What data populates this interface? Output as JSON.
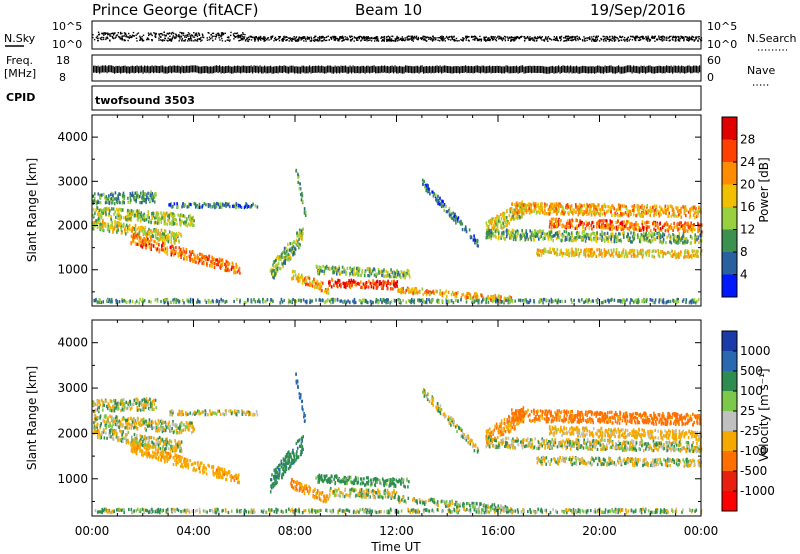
{
  "header": {
    "station": "Prince George (fitACF)",
    "beam": "Beam 10",
    "date": "19/Sep/2016"
  },
  "nsky_panel": {
    "left_label": "N.Sky",
    "left_ticks": [
      "10^5",
      "10^0"
    ],
    "right_label": "N.Search",
    "right_ticks": [
      "10^5",
      "10^0"
    ]
  },
  "freq_panel": {
    "left_label_line1": "Freq.",
    "left_label_line2": "[MHz]",
    "left_ticks": [
      "18",
      "8"
    ],
    "right_label": "Nave",
    "right_ticks": [
      "60",
      "0"
    ]
  },
  "cpid_panel": {
    "label": "CPID",
    "value": "twofsound 3503"
  },
  "power_panel": {
    "ylabel": "Slant Range [km]",
    "colorbar_label": "Power [dB]",
    "colorbar_ticks": [
      "28",
      "24",
      "20",
      "16",
      "12",
      "8",
      "4"
    ],
    "colorbar_colors": [
      "#e00000",
      "#ff4000",
      "#ff8c00",
      "#f0c000",
      "#98d040",
      "#3c9050",
      "#2860a0",
      "#0018ff"
    ]
  },
  "velocity_panel": {
    "ylabel": "Slant Range [km]",
    "colorbar_label": "Velocity [m s⁻¹]",
    "colorbar_ticks": [
      "1000",
      "500",
      "100",
      "25",
      "-25",
      "-100",
      "-500",
      "-1000"
    ],
    "colorbar_colors": [
      "#1a3ca8",
      "#2a68b0",
      "#2e8c50",
      "#7cc848",
      "#c0c0c0",
      "#f5a800",
      "#ff7000",
      "#e82010",
      "#ff0000"
    ]
  },
  "xaxis": {
    "label": "Time UT",
    "ticks": [
      "00:00",
      "04:00",
      "08:00",
      "12:00",
      "16:00",
      "20:00",
      "00:00"
    ]
  },
  "chart_data": [
    {
      "type": "heatmap",
      "title": "Prince George (fitACF) Beam 10 19/Sep/2016",
      "quantity": "Power",
      "units": "dB",
      "xlabel": "Time UT",
      "ylabel": "Slant Range [km]",
      "x_ticks": [
        "00:00",
        "04:00",
        "08:00",
        "12:00",
        "16:00",
        "20:00",
        "00:00"
      ],
      "y_ticks": [
        1000,
        2000,
        3000,
        4000
      ],
      "ylim": [
        180,
        4500
      ],
      "colorbar_range": [
        0,
        30
      ],
      "colorbar_ticks": [
        4,
        8,
        12,
        16,
        20,
        24,
        28
      ],
      "scatter_bands": [
        {
          "t_start": 0.0,
          "t_end": 2.5,
          "r_start": 2600,
          "r_end": 2650,
          "r_width": 250,
          "value": 10
        },
        {
          "t_start": 0.0,
          "t_end": 3.5,
          "r_start": 2050,
          "r_end": 1700,
          "r_width": 250,
          "value": 16
        },
        {
          "t_start": 1.5,
          "t_end": 5.8,
          "r_start": 1700,
          "r_end": 1000,
          "r_width": 230,
          "value": 24
        },
        {
          "t_start": 0.0,
          "t_end": 4.0,
          "r_start": 2300,
          "r_end": 2100,
          "r_width": 250,
          "value": 14
        },
        {
          "t_start": 3.0,
          "t_end": 6.5,
          "r_start": 2450,
          "r_end": 2450,
          "r_width": 100,
          "value": 8
        },
        {
          "t_start": 7.0,
          "t_end": 8.3,
          "r_start": 900,
          "r_end": 1800,
          "r_width": 400,
          "value": 12
        },
        {
          "t_start": 8.0,
          "t_end": 8.4,
          "r_start": 3300,
          "r_end": 2200,
          "r_width": 220,
          "value": 10
        },
        {
          "t_start": 7.8,
          "t_end": 9.3,
          "r_start": 900,
          "r_end": 550,
          "r_width": 200,
          "value": 20
        },
        {
          "t_start": 9.3,
          "t_end": 12.0,
          "r_start": 700,
          "r_end": 650,
          "r_width": 180,
          "value": 28
        },
        {
          "t_start": 8.8,
          "t_end": 12.5,
          "r_start": 1000,
          "r_end": 900,
          "r_width": 180,
          "value": 12
        },
        {
          "t_start": 12.0,
          "t_end": 16.5,
          "r_start": 550,
          "r_end": 330,
          "r_width": 130,
          "value": 20
        },
        {
          "t_start": 13.0,
          "t_end": 15.2,
          "r_start": 2950,
          "r_end": 1600,
          "r_width": 180,
          "value": 8
        },
        {
          "t_start": 15.5,
          "t_end": 17.0,
          "r_start": 1900,
          "r_end": 2400,
          "r_width": 350,
          "value": 16
        },
        {
          "t_start": 16.5,
          "t_end": 24.0,
          "r_start": 2400,
          "r_end": 2300,
          "r_width": 250,
          "value": 20
        },
        {
          "t_start": 18.0,
          "t_end": 24.0,
          "r_start": 2050,
          "r_end": 1950,
          "r_width": 200,
          "value": 24
        },
        {
          "t_start": 15.5,
          "t_end": 24.0,
          "r_start": 1800,
          "r_end": 1700,
          "r_width": 220,
          "value": 12
        },
        {
          "t_start": 17.5,
          "t_end": 24.0,
          "r_start": 1400,
          "r_end": 1350,
          "r_width": 160,
          "value": 18
        },
        {
          "t_start": 0.0,
          "t_end": 24.0,
          "r_start": 290,
          "r_end": 290,
          "r_width": 80,
          "value": 10
        }
      ]
    },
    {
      "type": "heatmap",
      "title": "Prince George (fitACF) Beam 10 19/Sep/2016",
      "quantity": "Velocity",
      "units": "m s-1",
      "xlabel": "Time UT",
      "ylabel": "Slant Range [km]",
      "x_ticks": [
        "00:00",
        "04:00",
        "08:00",
        "12:00",
        "16:00",
        "20:00",
        "00:00"
      ],
      "y_ticks": [
        1000,
        2000,
        3000,
        4000
      ],
      "ylim": [
        180,
        4500
      ],
      "colorbar_levels": [
        1000,
        500,
        100,
        25,
        -25,
        -100,
        -500,
        -1000
      ],
      "scatter_bands": [
        {
          "t_start": 0.0,
          "t_end": 2.5,
          "r_start": 2600,
          "r_end": 2650,
          "r_width": 250,
          "value": 0
        },
        {
          "t_start": 0.0,
          "t_end": 3.5,
          "r_start": 2050,
          "r_end": 1700,
          "r_width": 250,
          "value": 0
        },
        {
          "t_start": 1.5,
          "t_end": 5.8,
          "r_start": 1700,
          "r_end": 1000,
          "r_width": 230,
          "value": -200
        },
        {
          "t_start": 0.0,
          "t_end": 4.0,
          "r_start": 2300,
          "r_end": 2100,
          "r_width": 250,
          "value": 0
        },
        {
          "t_start": 3.0,
          "t_end": 6.5,
          "r_start": 2450,
          "r_end": 2450,
          "r_width": 100,
          "value": 0
        },
        {
          "t_start": 7.0,
          "t_end": 8.3,
          "r_start": 900,
          "r_end": 1800,
          "r_width": 400,
          "value": 200
        },
        {
          "t_start": 8.0,
          "t_end": 8.4,
          "r_start": 3300,
          "r_end": 2200,
          "r_width": 220,
          "value": 500
        },
        {
          "t_start": 7.8,
          "t_end": 9.3,
          "r_start": 900,
          "r_end": 550,
          "r_width": 200,
          "value": -300
        },
        {
          "t_start": 9.3,
          "t_end": 12.0,
          "r_start": 700,
          "r_end": 650,
          "r_width": 180,
          "value": 0
        },
        {
          "t_start": 8.8,
          "t_end": 12.5,
          "r_start": 1000,
          "r_end": 900,
          "r_width": 180,
          "value": 150
        },
        {
          "t_start": 12.0,
          "t_end": 16.5,
          "r_start": 550,
          "r_end": 330,
          "r_width": 130,
          "value": 60
        },
        {
          "t_start": 13.0,
          "t_end": 15.2,
          "r_start": 2950,
          "r_end": 1600,
          "r_width": 180,
          "value": 0
        },
        {
          "t_start": 15.5,
          "t_end": 17.0,
          "r_start": 1900,
          "r_end": 2400,
          "r_width": 350,
          "value": -300
        },
        {
          "t_start": 16.5,
          "t_end": 24.0,
          "r_start": 2400,
          "r_end": 2300,
          "r_width": 250,
          "value": -400
        },
        {
          "t_start": 18.0,
          "t_end": 24.0,
          "r_start": 2050,
          "r_end": 1950,
          "r_width": 200,
          "value": -100
        },
        {
          "t_start": 15.5,
          "t_end": 24.0,
          "r_start": 1800,
          "r_end": 1700,
          "r_width": 220,
          "value": 0
        },
        {
          "t_start": 17.5,
          "t_end": 24.0,
          "r_start": 1400,
          "r_end": 1350,
          "r_width": 160,
          "value": 0
        },
        {
          "t_start": 0.0,
          "t_end": 24.0,
          "r_start": 290,
          "r_end": 290,
          "r_width": 80,
          "value": 60
        }
      ]
    }
  ]
}
